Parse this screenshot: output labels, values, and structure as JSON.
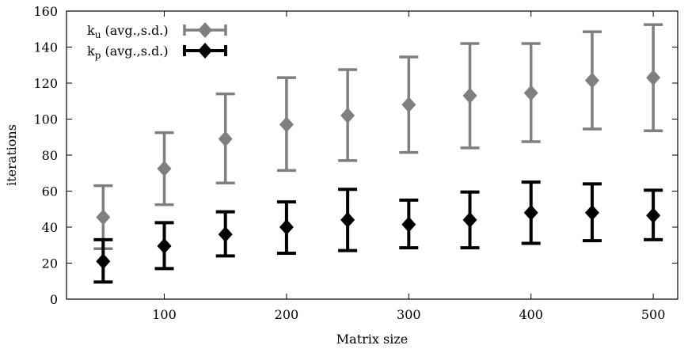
{
  "chart_data": {
    "type": "scatter",
    "xlabel": "Matrix size",
    "ylabel": "iterations",
    "xlim": [
      20,
      520
    ],
    "ylim": [
      0,
      160
    ],
    "x_ticks": [
      100,
      200,
      300,
      400,
      500
    ],
    "y_ticks": [
      0,
      20,
      40,
      60,
      80,
      100,
      120,
      140,
      160
    ],
    "grid": false,
    "legend_position": "top-left",
    "x": [
      50,
      100,
      150,
      200,
      250,
      300,
      350,
      400,
      450,
      500
    ],
    "series": [
      {
        "name": "k_u (avg.,s.d.)",
        "name_base": "k",
        "name_sub": "u",
        "name_rest": " (avg.,s.d.)",
        "color": "#7f7f7f",
        "mean": [
          45.5,
          72.5,
          89,
          97,
          102,
          108,
          113,
          114.5,
          121.5,
          123
        ],
        "lower": [
          28,
          52.5,
          64.5,
          71.5,
          77,
          81.5,
          84,
          87.5,
          94.5,
          93.5
        ],
        "upper": [
          63,
          92.5,
          114,
          123,
          127.5,
          134.5,
          142,
          142,
          148.5,
          152.5
        ]
      },
      {
        "name": "k_p (avg.,s.d.)",
        "name_base": "k",
        "name_sub": "p",
        "name_rest": " (avg.,s.d.)",
        "color": "#000000",
        "mean": [
          21,
          29.5,
          36,
          40,
          44,
          41.5,
          44,
          48,
          48,
          46.5
        ],
        "lower": [
          9.5,
          17,
          24,
          25.5,
          27,
          28.5,
          28.5,
          31,
          32.5,
          33
        ],
        "upper": [
          33,
          42.5,
          48.5,
          54,
          61,
          55,
          59.5,
          65,
          64,
          60.5
        ]
      }
    ]
  }
}
